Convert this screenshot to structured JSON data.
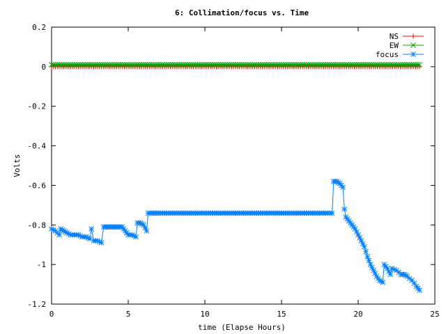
{
  "chart_data": {
    "type": "line",
    "title": "6: Collimation/focus vs. Time",
    "xlabel": "time (Elapse Hours)",
    "ylabel": "Volts",
    "xlim": [
      0,
      25
    ],
    "ylim": [
      -1.2,
      0.2
    ],
    "xticks": [
      {
        "value": 0,
        "label": "0"
      },
      {
        "value": 5,
        "label": "5"
      },
      {
        "value": 10,
        "label": "10"
      },
      {
        "value": 15,
        "label": "15"
      },
      {
        "value": 20,
        "label": "20"
      },
      {
        "value": 25,
        "label": "25"
      }
    ],
    "yticks": [
      {
        "value": 0.2,
        "label": "0.2"
      },
      {
        "value": 0,
        "label": "0"
      },
      {
        "value": -0.2,
        "label": "-0.2"
      },
      {
        "value": -0.4,
        "label": "-0.4"
      },
      {
        "value": -0.6,
        "label": "-0.6"
      },
      {
        "value": -0.8,
        "label": "-0.8"
      },
      {
        "value": -1,
        "label": "-1"
      },
      {
        "value": -1.2,
        "label": "-1.2"
      }
    ],
    "grid": false,
    "legend_position": "top-right",
    "series": [
      {
        "name": "NS",
        "color": "#ff0000",
        "marker": "plus",
        "points": [
          [
            0.0,
            0.0
          ],
          [
            0.5,
            0.0
          ],
          [
            1.0,
            0.0
          ],
          [
            1.5,
            0.0
          ],
          [
            2.0,
            0.0
          ],
          [
            2.5,
            0.0
          ],
          [
            3.0,
            0.0
          ],
          [
            3.5,
            0.0
          ],
          [
            4.0,
            0.0
          ],
          [
            4.5,
            0.0
          ],
          [
            5.0,
            0.0
          ],
          [
            5.5,
            0.0
          ],
          [
            6.0,
            0.0
          ],
          [
            6.5,
            0.0
          ],
          [
            7.0,
            0.0
          ],
          [
            7.5,
            0.0
          ],
          [
            8.0,
            0.0
          ],
          [
            8.5,
            0.0
          ],
          [
            9.0,
            0.0
          ],
          [
            9.5,
            0.0
          ],
          [
            10.0,
            0.0
          ],
          [
            10.5,
            0.0
          ],
          [
            11.0,
            0.0
          ],
          [
            11.5,
            0.0
          ],
          [
            12.0,
            0.0
          ],
          [
            12.5,
            0.0
          ],
          [
            13.0,
            0.0
          ],
          [
            13.5,
            0.0
          ],
          [
            14.0,
            0.0
          ],
          [
            14.5,
            0.0
          ],
          [
            15.0,
            0.0
          ],
          [
            15.5,
            0.0
          ],
          [
            16.0,
            0.0
          ],
          [
            16.5,
            0.0
          ],
          [
            17.0,
            0.0
          ],
          [
            17.5,
            0.0
          ],
          [
            18.0,
            0.0
          ],
          [
            18.5,
            0.0
          ],
          [
            19.0,
            0.0
          ],
          [
            19.5,
            0.0
          ],
          [
            20.0,
            0.0
          ],
          [
            20.5,
            0.0
          ],
          [
            21.0,
            0.0
          ],
          [
            21.5,
            0.0
          ],
          [
            22.0,
            0.0
          ],
          [
            22.5,
            0.0
          ],
          [
            23.0,
            0.0
          ],
          [
            23.5,
            0.0
          ],
          [
            24.0,
            0.0
          ]
        ]
      },
      {
        "name": "EW",
        "color": "#00a000",
        "marker": "cross",
        "points": [
          [
            0.0,
            0.01
          ],
          [
            0.5,
            0.01
          ],
          [
            1.0,
            0.01
          ],
          [
            1.5,
            0.01
          ],
          [
            2.0,
            0.01
          ],
          [
            2.5,
            0.01
          ],
          [
            3.0,
            0.01
          ],
          [
            3.5,
            0.01
          ],
          [
            4.0,
            0.01
          ],
          [
            4.5,
            0.01
          ],
          [
            5.0,
            0.01
          ],
          [
            5.5,
            0.01
          ],
          [
            6.0,
            0.01
          ],
          [
            6.5,
            0.01
          ],
          [
            7.0,
            0.01
          ],
          [
            7.5,
            0.01
          ],
          [
            8.0,
            0.01
          ],
          [
            8.5,
            0.01
          ],
          [
            9.0,
            0.01
          ],
          [
            9.5,
            0.01
          ],
          [
            10.0,
            0.01
          ],
          [
            10.5,
            0.01
          ],
          [
            11.0,
            0.01
          ],
          [
            11.5,
            0.01
          ],
          [
            12.0,
            0.01
          ],
          [
            12.5,
            0.01
          ],
          [
            13.0,
            0.01
          ],
          [
            13.5,
            0.01
          ],
          [
            14.0,
            0.01
          ],
          [
            14.5,
            0.01
          ],
          [
            15.0,
            0.01
          ],
          [
            15.5,
            0.01
          ],
          [
            16.0,
            0.01
          ],
          [
            16.5,
            0.01
          ],
          [
            17.0,
            0.01
          ],
          [
            17.5,
            0.01
          ],
          [
            18.0,
            0.01
          ],
          [
            18.5,
            0.01
          ],
          [
            19.0,
            0.01
          ],
          [
            19.5,
            0.01
          ],
          [
            20.0,
            0.01
          ],
          [
            20.5,
            0.01
          ],
          [
            21.0,
            0.01
          ],
          [
            21.5,
            0.01
          ],
          [
            22.0,
            0.01
          ],
          [
            22.5,
            0.01
          ],
          [
            23.0,
            0.01
          ],
          [
            23.5,
            0.01
          ],
          [
            24.0,
            0.01
          ]
        ]
      },
      {
        "name": "focus",
        "color": "#0080ff",
        "marker": "star",
        "points": [
          [
            0.0,
            -0.82
          ],
          [
            0.25,
            -0.83
          ],
          [
            0.5,
            -0.85
          ],
          [
            0.6,
            -0.82
          ],
          [
            0.8,
            -0.83
          ],
          [
            1.0,
            -0.84
          ],
          [
            1.25,
            -0.85
          ],
          [
            1.5,
            -0.85
          ],
          [
            1.75,
            -0.85
          ],
          [
            2.0,
            -0.86
          ],
          [
            2.25,
            -0.86
          ],
          [
            2.5,
            -0.87
          ],
          [
            2.6,
            -0.82
          ],
          [
            2.75,
            -0.88
          ],
          [
            3.0,
            -0.88
          ],
          [
            3.25,
            -0.89
          ],
          [
            3.4,
            -0.81
          ],
          [
            3.6,
            -0.81
          ],
          [
            3.8,
            -0.81
          ],
          [
            4.0,
            -0.81
          ],
          [
            4.2,
            -0.81
          ],
          [
            4.4,
            -0.81
          ],
          [
            4.6,
            -0.81
          ],
          [
            4.8,
            -0.83
          ],
          [
            5.0,
            -0.85
          ],
          [
            5.25,
            -0.85
          ],
          [
            5.5,
            -0.86
          ],
          [
            5.6,
            -0.79
          ],
          [
            5.8,
            -0.79
          ],
          [
            6.0,
            -0.8
          ],
          [
            6.2,
            -0.83
          ],
          [
            6.3,
            -0.74
          ],
          [
            7.0,
            -0.74
          ],
          [
            8.0,
            -0.74
          ],
          [
            9.0,
            -0.74
          ],
          [
            10.0,
            -0.74
          ],
          [
            11.0,
            -0.74
          ],
          [
            12.0,
            -0.74
          ],
          [
            13.0,
            -0.74
          ],
          [
            14.0,
            -0.74
          ],
          [
            15.0,
            -0.74
          ],
          [
            16.0,
            -0.74
          ],
          [
            17.0,
            -0.74
          ],
          [
            18.0,
            -0.74
          ],
          [
            18.3,
            -0.74
          ],
          [
            18.4,
            -0.58
          ],
          [
            18.6,
            -0.58
          ],
          [
            18.8,
            -0.59
          ],
          [
            19.0,
            -0.61
          ],
          [
            19.1,
            -0.72
          ],
          [
            19.2,
            -0.76
          ],
          [
            19.4,
            -0.78
          ],
          [
            19.6,
            -0.8
          ],
          [
            19.8,
            -0.82
          ],
          [
            20.0,
            -0.85
          ],
          [
            20.2,
            -0.88
          ],
          [
            20.4,
            -0.91
          ],
          [
            20.6,
            -0.96
          ],
          [
            20.8,
            -1.0
          ],
          [
            21.0,
            -1.03
          ],
          [
            21.2,
            -1.06
          ],
          [
            21.4,
            -1.08
          ],
          [
            21.6,
            -1.09
          ],
          [
            21.7,
            -1.0
          ],
          [
            21.9,
            -1.02
          ],
          [
            22.1,
            -1.05
          ],
          [
            22.2,
            -1.02
          ],
          [
            22.5,
            -1.03
          ],
          [
            22.8,
            -1.05
          ],
          [
            23.0,
            -1.05
          ],
          [
            23.2,
            -1.06
          ],
          [
            23.5,
            -1.08
          ],
          [
            23.8,
            -1.11
          ],
          [
            24.0,
            -1.13
          ]
        ]
      }
    ]
  }
}
